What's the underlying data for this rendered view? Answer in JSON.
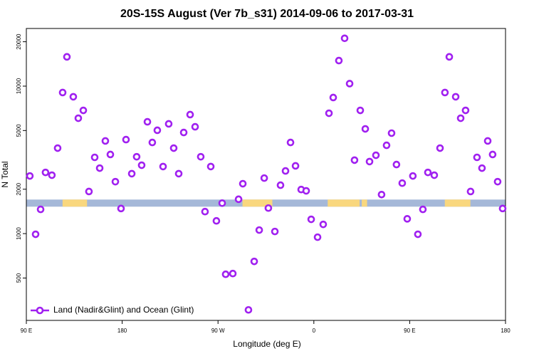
{
  "chart_data": {
    "type": "scatter",
    "title": "20S-15S August (Ver 7b_s31)   2014-09-06 to 2017-03-31",
    "x_label": "Longitude (deg E)",
    "y_label": "N Total",
    "log_y": true,
    "legend_position": "bottom-left",
    "xlim": [
      90,
      540
    ],
    "xticks": [
      {
        "value": 90,
        "label": "90 E"
      },
      {
        "value": 180,
        "label": "180"
      },
      {
        "value": 270,
        "label": "90 W"
      },
      {
        "value": 360,
        "label": "0"
      },
      {
        "value": 450,
        "label": "90 E"
      },
      {
        "value": 540,
        "label": "180"
      }
    ],
    "ylim": [
      258,
      24600
    ],
    "yticks": [
      500,
      1000,
      2000,
      5000,
      10000,
      20000
    ],
    "strip": {
      "value": 1610,
      "ocean_color": "#a5b8d8",
      "land_color": "#f9d77e",
      "land": [
        [
          124,
          147
        ],
        [
          293,
          321
        ],
        [
          373,
          403
        ],
        [
          405,
          410
        ],
        [
          483,
          507
        ]
      ]
    },
    "series": [
      {
        "name": "Land (Nadir&Glint) and Ocean (Glint)",
        "color": "#a020f0",
        "x": [
          93.3,
          98.7,
          103.4,
          108,
          114,
          119.4,
          124.1,
          128.1,
          134.1,
          138.8,
          143.5,
          148.8,
          154.2,
          158.9,
          164.2,
          168.9,
          173.6,
          178.9,
          183.6,
          189,
          193.6,
          198.3,
          203.7,
          208.3,
          213,
          218.4,
          223.7,
          228.4,
          233.1,
          237.8,
          243.8,
          248.5,
          253.8,
          257.8,
          263.2,
          268.5,
          273.9,
          277.2,
          283.9,
          289.3,
          293.3,
          298.6,
          304,
          308.7,
          313.4,
          317.3,
          323.4,
          328.7,
          333.4,
          338.1,
          342.8,
          348.1,
          352.8,
          357.5,
          363.5,
          368.8,
          374.2,
          378.2,
          383.5,
          388.9,
          393.6,
          398.2,
          403.6,
          408.3,
          412.3,
          418.3,
          423.6,
          428.3,
          433,
          437.6,
          443,
          447.7,
          453,
          457.7,
          462.4,
          467.1,
          473.1,
          478.5,
          483.1,
          487.2,
          493.2,
          497.9,
          502.5,
          507.2,
          513.2,
          517.9,
          523.3,
          527.9,
          532.6,
          537.3
        ],
        "values": [
          2460,
          990,
          1460,
          2600,
          2490,
          3800,
          9050,
          15800,
          8470,
          6060,
          6850,
          1930,
          3290,
          2780,
          4250,
          3440,
          2250,
          1480,
          4340,
          2550,
          3320,
          2910,
          5730,
          4150,
          5020,
          2850,
          5550,
          3800,
          2550,
          4850,
          6410,
          5300,
          3320,
          1410,
          2850,
          1220,
          1610,
          530,
          536,
          1710,
          2180,
          304,
          648,
          1057,
          2380,
          1490,
          1034,
          2130,
          2660,
          4150,
          2880,
          1990,
          1950,
          1250,
          946,
          1155,
          6550,
          8370,
          14900,
          21100,
          10400,
          3150,
          6850,
          5130,
          3080,
          3400,
          1840,
          3970,
          4800,
          2940,
          2200,
          1260,
          2460,
          990,
          1460,
          2600,
          2490,
          3800,
          9050,
          15800,
          8470,
          6060,
          6850,
          1930,
          3290,
          2780,
          4250,
          3440,
          2250,
          1480
        ]
      }
    ]
  }
}
